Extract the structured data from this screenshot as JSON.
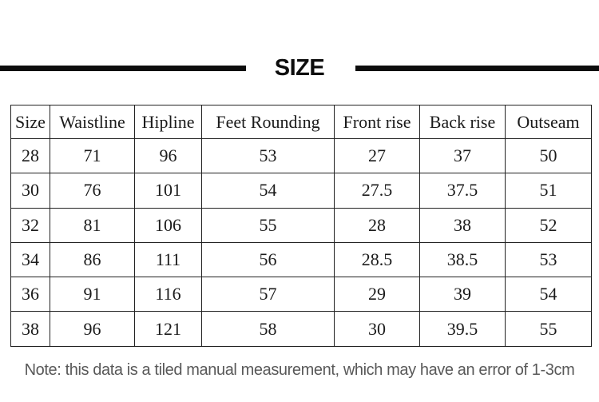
{
  "page": {
    "title": "SIZE",
    "note": "Note: this data is a tiled manual measurement, which may have an error of 1-3cm"
  },
  "colors": {
    "background": "#ffffff",
    "rule_bar": "#0d0d0d",
    "title_text": "#0d0d0d",
    "table_border": "#222222",
    "table_text": "#1b1b1b",
    "note_text": "#595959"
  },
  "chart_data": {
    "type": "table",
    "title": "SIZE",
    "columns": [
      "Size",
      "Waistline",
      "Hipline",
      "Feet Rounding",
      "Front rise",
      "Back rise",
      "Outseam"
    ],
    "rows": [
      [
        28,
        71,
        96,
        53,
        27,
        37,
        50
      ],
      [
        30,
        76,
        101,
        54,
        27.5,
        37.5,
        51
      ],
      [
        32,
        81,
        106,
        55,
        28,
        38,
        52
      ],
      [
        34,
        86,
        111,
        56,
        28.5,
        38.5,
        53
      ],
      [
        36,
        91,
        116,
        57,
        29,
        39,
        54
      ],
      [
        38,
        96,
        121,
        58,
        30,
        39.5,
        55
      ]
    ],
    "footnote": "Note: this data is a tiled manual measurement, which may have an error of 1-3cm",
    "layout": {
      "grid": "full-borders",
      "header_position": "top-row"
    }
  }
}
